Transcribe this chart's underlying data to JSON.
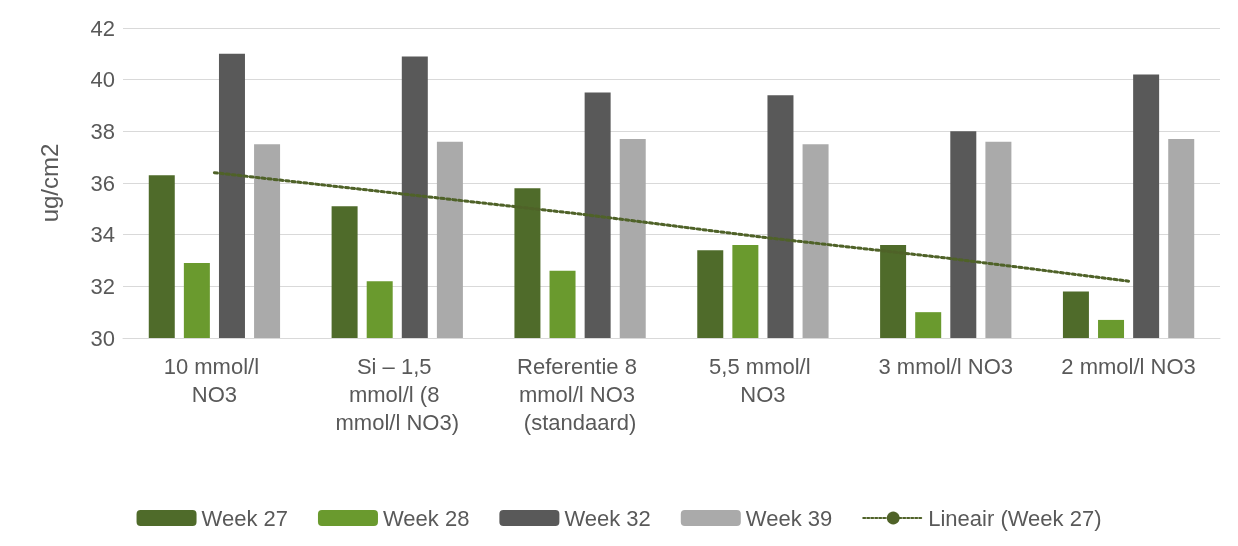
{
  "chart_data": {
    "type": "bar",
    "ylabel": "ug/cm2",
    "categories": [
      "10 mmol/l NO3",
      "Si – 1,5 mmol/l (8 mmol/l NO3)",
      "Referentie 8 mmol/l NO3 (standaard)",
      "5,5 mmol/l NO3",
      "3 mmol/l NO3",
      "2 mmol/l NO3"
    ],
    "series": [
      {
        "name": "Week 27",
        "color": "#4f6b2a",
        "values": [
          36.3,
          35.1,
          35.8,
          33.4,
          33.6,
          31.8
        ]
      },
      {
        "name": "Week 28",
        "color": "#6a9a2e",
        "values": [
          32.9,
          32.2,
          32.6,
          33.6,
          31.0,
          30.7
        ]
      },
      {
        "name": "Week 32",
        "color": "#595959",
        "values": [
          41.0,
          40.9,
          39.5,
          39.4,
          38.0,
          40.2
        ]
      },
      {
        "name": "Week 39",
        "color": "#aaaaaa",
        "values": [
          37.5,
          37.6,
          37.7,
          37.5,
          37.6,
          37.7
        ]
      },
      {
        "name": "Lineair (Week 27)",
        "type": "line",
        "color": "#4f6228",
        "line_style": "dotted",
        "marker": "none",
        "values": [
          36.4,
          35.6,
          34.8,
          33.9,
          33.1,
          32.2
        ]
      }
    ],
    "ylim": [
      30,
      42
    ],
    "yticks": [
      30,
      32,
      34,
      36,
      38,
      40,
      42
    ],
    "grid": "y",
    "legend": "bottom"
  }
}
